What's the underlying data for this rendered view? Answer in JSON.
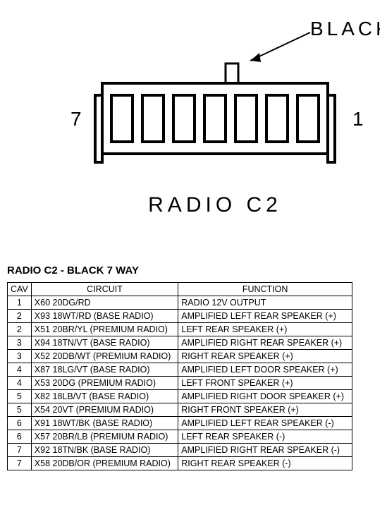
{
  "diagram": {
    "callout_label": "BLACK",
    "left_pin_label": "7",
    "right_pin_label": "1",
    "connector_title": "RADIO C2",
    "stroke": "#000000",
    "fill": "#ffffff",
    "pin_count": 7
  },
  "table": {
    "title": "RADIO C2 - BLACK 7 WAY",
    "columns": [
      "CAV",
      "CIRCUIT",
      "FUNCTION"
    ],
    "rows": [
      [
        "1",
        "X60 20DG/RD",
        "RADIO 12V OUTPUT"
      ],
      [
        "2",
        "X93 18WT/RD (BASE RADIO)",
        "AMPLIFIED LEFT REAR SPEAKER (+)"
      ],
      [
        "2",
        "X51 20BR/YL (PREMIUM RADIO)",
        "LEFT REAR SPEAKER (+)"
      ],
      [
        "3",
        "X94 18TN/VT (BASE RADIO)",
        "AMPLIFIED RIGHT REAR SPEAKER (+)"
      ],
      [
        "3",
        "X52 20DB/WT (PREMIUM RADIO)",
        "RIGHT REAR SPEAKER (+)"
      ],
      [
        "4",
        "X87 18LG/VT (BASE RADIO)",
        "AMPLIFIED LEFT DOOR SPEAKER (+)"
      ],
      [
        "4",
        "X53 20DG (PREMIUM RADIO)",
        "LEFT FRONT SPEAKER (+)"
      ],
      [
        "5",
        "X82 18LB/VT (BASE RADIO)",
        "AMPLIFIED RIGHT DOOR SPEAKER (+)"
      ],
      [
        "5",
        "X54 20VT (PREMIUM RADIO)",
        "RIGHT FRONT SPEAKER (+)"
      ],
      [
        "6",
        "X91 18WT/BK (BASE RADIO)",
        "AMPLIFIED LEFT REAR SPEAKER (-)"
      ],
      [
        "6",
        "X57 20BR/LB (PREMIUM RADIO)",
        "LEFT REAR SPEAKER (-)"
      ],
      [
        "7",
        "X92 18TN/BK (BASE RADIO)",
        "AMPLIFIED RIGHT REAR SPEAKER (-)"
      ],
      [
        "7",
        "X58 20DB/OR (PREMIUM RADIO)",
        "RIGHT REAR SPEAKER (-)"
      ]
    ]
  }
}
